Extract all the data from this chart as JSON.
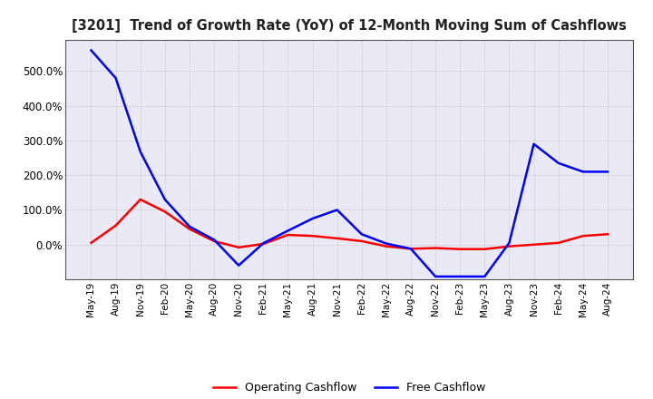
{
  "title": "[3201]  Trend of Growth Rate (YoY) of 12-Month Moving Sum of Cashflows",
  "x_labels": [
    "May-19",
    "Aug-19",
    "Nov-19",
    "Feb-20",
    "May-20",
    "Aug-20",
    "Nov-20",
    "Feb-21",
    "May-21",
    "Aug-21",
    "Nov-21",
    "Feb-22",
    "May-22",
    "Aug-22",
    "Nov-22",
    "Feb-23",
    "May-23",
    "Aug-23",
    "Nov-23",
    "Feb-24",
    "May-24",
    "Aug-24"
  ],
  "operating_cashflow": [
    0.05,
    0.55,
    1.3,
    0.95,
    0.45,
    0.1,
    -0.08,
    0.02,
    0.28,
    0.25,
    0.18,
    0.1,
    -0.05,
    -0.12,
    -0.1,
    -0.13,
    -0.13,
    -0.05,
    0.0,
    0.05,
    0.25,
    0.3
  ],
  "free_cashflow": [
    5.6,
    4.8,
    2.68,
    1.3,
    0.52,
    0.14,
    -0.6,
    0.04,
    0.4,
    0.75,
    1.0,
    0.3,
    0.03,
    -0.12,
    -0.92,
    -0.92,
    -0.92,
    0.05,
    2.9,
    2.35,
    2.1,
    2.1
  ],
  "operating_color": "#FF0000",
  "free_color": "#0000FF",
  "background_color": "#FFFFFF",
  "plot_bg_color": "#EAEAF4",
  "grid_color": "#BBBBBB",
  "ylim_min": -1.0,
  "ylim_max": 5.9,
  "yticks": [
    0.0,
    1.0,
    2.0,
    3.0,
    4.0,
    5.0
  ],
  "legend_labels": [
    "Operating Cashflow",
    "Free Cashflow"
  ]
}
